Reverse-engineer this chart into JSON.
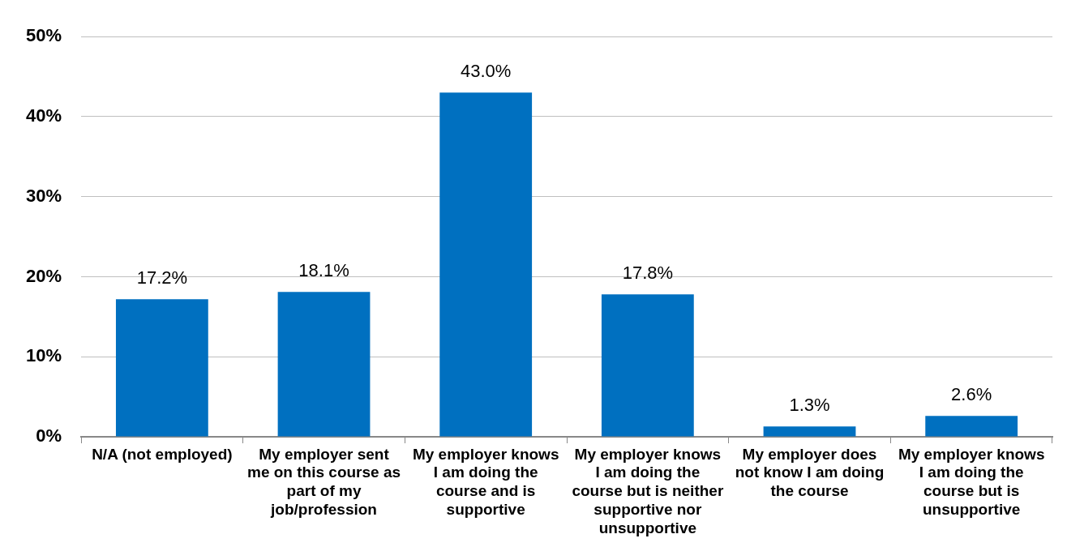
{
  "chart_data": {
    "type": "bar",
    "categories": [
      "N/A (not employed)",
      "My employer sent me on this course as part of my job/profession",
      "My employer knows I am doing the course and is supportive",
      "My employer knows I am doing the course but is neither supportive nor unsupportive",
      "My employer does not know I am doing the course",
      "My employer knows I am doing the course but is unsupportive"
    ],
    "values": [
      17.2,
      18.1,
      43.0,
      17.8,
      1.3,
      2.6
    ],
    "value_labels": [
      "17.2%",
      "18.1%",
      "43.0%",
      "17.8%",
      "1.3%",
      "2.6%"
    ],
    "color": "#0070c0",
    "ylim": [
      0,
      50
    ],
    "yticks": [
      {
        "value": 0,
        "label": "0%"
      },
      {
        "value": 10,
        "label": "10%"
      },
      {
        "value": 20,
        "label": "20%"
      },
      {
        "value": 30,
        "label": "30%"
      },
      {
        "value": 40,
        "label": "40%"
      },
      {
        "value": 50,
        "label": "50%"
      }
    ],
    "grid": "y",
    "legend": false
  }
}
